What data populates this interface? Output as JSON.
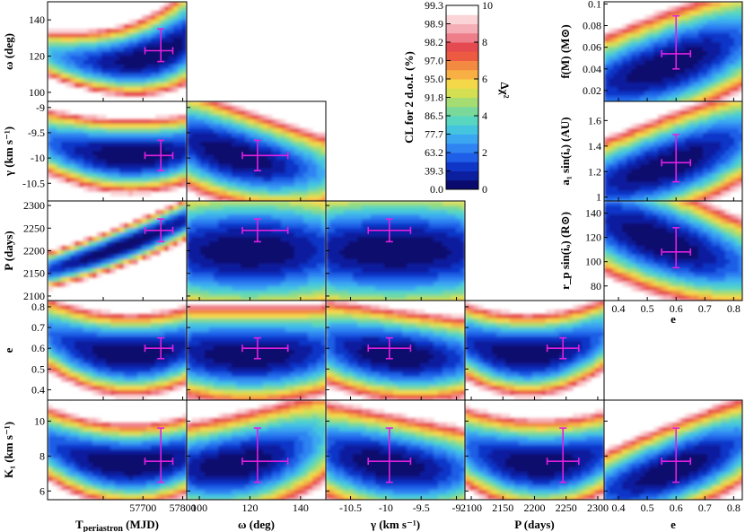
{
  "chart_data": {
    "type": "heatmap",
    "description_note": "",
    "best_fit": {
      "T_periastron": 57745,
      "omega": 123,
      "gamma": -9.95,
      "P": 2245,
      "e": 0.6,
      "K1": 7.7,
      "f_M": 0.054,
      "a1_sin_i": 1.27,
      "rp_sin_i": 108
    },
    "best_fit_errors": {
      "T_periastron": [
        40,
        30
      ],
      "omega": [
        6,
        12
      ],
      "gamma": [
        0.3,
        0.3
      ],
      "P": [
        25,
        25
      ],
      "e": [
        0.05,
        0.05
      ],
      "K1": [
        1.2,
        1.9
      ],
      "f_M": [
        0.014,
        0.035
      ],
      "a1_sin_i": [
        0.15,
        0.22
      ],
      "rp_sin_i": [
        13,
        20
      ]
    },
    "params": {
      "T_periastron": {
        "label_main": "T",
        "label_sub": "periastron",
        "unit": " (MJD)",
        "range": [
          57460,
          57810
        ],
        "ticks": [
          57600,
          57700,
          57800
        ],
        "ticklabels": [
          "",
          "57700",
          "57800"
        ]
      },
      "omega": {
        "label": "ω (deg)",
        "range": [
          95,
          150
        ],
        "ticks": [
          100,
          120,
          140
        ],
        "ticklabels": [
          "100",
          "120",
          "140"
        ]
      },
      "gamma": {
        "label": "γ (km s⁻¹)",
        "range": [
          -10.85,
          -8.88
        ],
        "ticks": [
          -10.5,
          -10,
          -9.5,
          -9
        ],
        "ticklabels": [
          "-10.5",
          "-10",
          "-9.5",
          "-9"
        ]
      },
      "P": {
        "label": "P (days)",
        "range": [
          2090,
          2310
        ],
        "ticks": [
          2100,
          2150,
          2200,
          2250,
          2300
        ],
        "ticklabels": [
          "2100",
          "2150",
          "2200",
          "2250",
          "2300"
        ]
      },
      "e": {
        "label": "e",
        "range": [
          0.35,
          0.83
        ],
        "ticks": [
          0.4,
          0.5,
          0.6,
          0.7,
          0.8
        ],
        "ticklabels": [
          "0.4",
          "0.5",
          "0.6",
          "0.7",
          "0.8"
        ]
      },
      "K1": {
        "label": "K₁ (km s⁻¹)",
        "range": [
          5.5,
          11.2
        ],
        "ticks": [
          6,
          8,
          10
        ],
        "ticklabels": [
          "6",
          "8",
          "10"
        ]
      },
      "f_M": {
        "label": "f(M) (M⊙)",
        "range": [
          0.01,
          0.102
        ],
        "ticks": [
          0.02,
          0.04,
          0.06,
          0.08,
          0.1
        ],
        "ticklabels": [
          "0.02",
          "0.04",
          "0.06",
          "0.08",
          "0.1"
        ]
      },
      "a1_sin_i": {
        "label": "a₁ sin(iₒ) (AU)",
        "range": [
          0.97,
          1.75
        ],
        "ticks": [
          1.0,
          1.2,
          1.4,
          1.6
        ],
        "ticklabels": [
          "1",
          "1.2",
          "1.4",
          "1.6"
        ]
      },
      "rp_sin_i": {
        "label": "r_p sin(iₒ) (R⊙)",
        "range": [
          68,
          150
        ],
        "ticks": [
          80,
          100,
          120,
          140
        ],
        "ticklabels": [
          "80",
          "100",
          "120",
          "140"
        ]
      }
    },
    "colorbar": {
      "title": "CL for 2 d.o.f. (%)",
      "right_label": "Δχ²",
      "cl_ticks": [
        "99.3",
        "98.9",
        "98.2",
        "97.0",
        "95.0",
        "91.8",
        "86.5",
        "77.7",
        "63.2",
        "39.3",
        "0.0"
      ],
      "chi2_ticks": [
        "10",
        "8",
        "6",
        "4",
        "2",
        "0"
      ],
      "range": [
        0,
        10
      ]
    },
    "color_scale": [
      "#0a0a6e",
      "#0c1f9e",
      "#1036c8",
      "#1f5ee6",
      "#2f84f2",
      "#3aa7f0",
      "#45c4e0",
      "#58d6c0",
      "#7ad99a",
      "#a6dd72",
      "#d4df52",
      "#f4d84a",
      "#f8b044",
      "#f38a42",
      "#ec5a42",
      "#e54a50",
      "#ee7e8a",
      "#f6aeb6",
      "#fbd4d8",
      "#ffffff"
    ]
  }
}
